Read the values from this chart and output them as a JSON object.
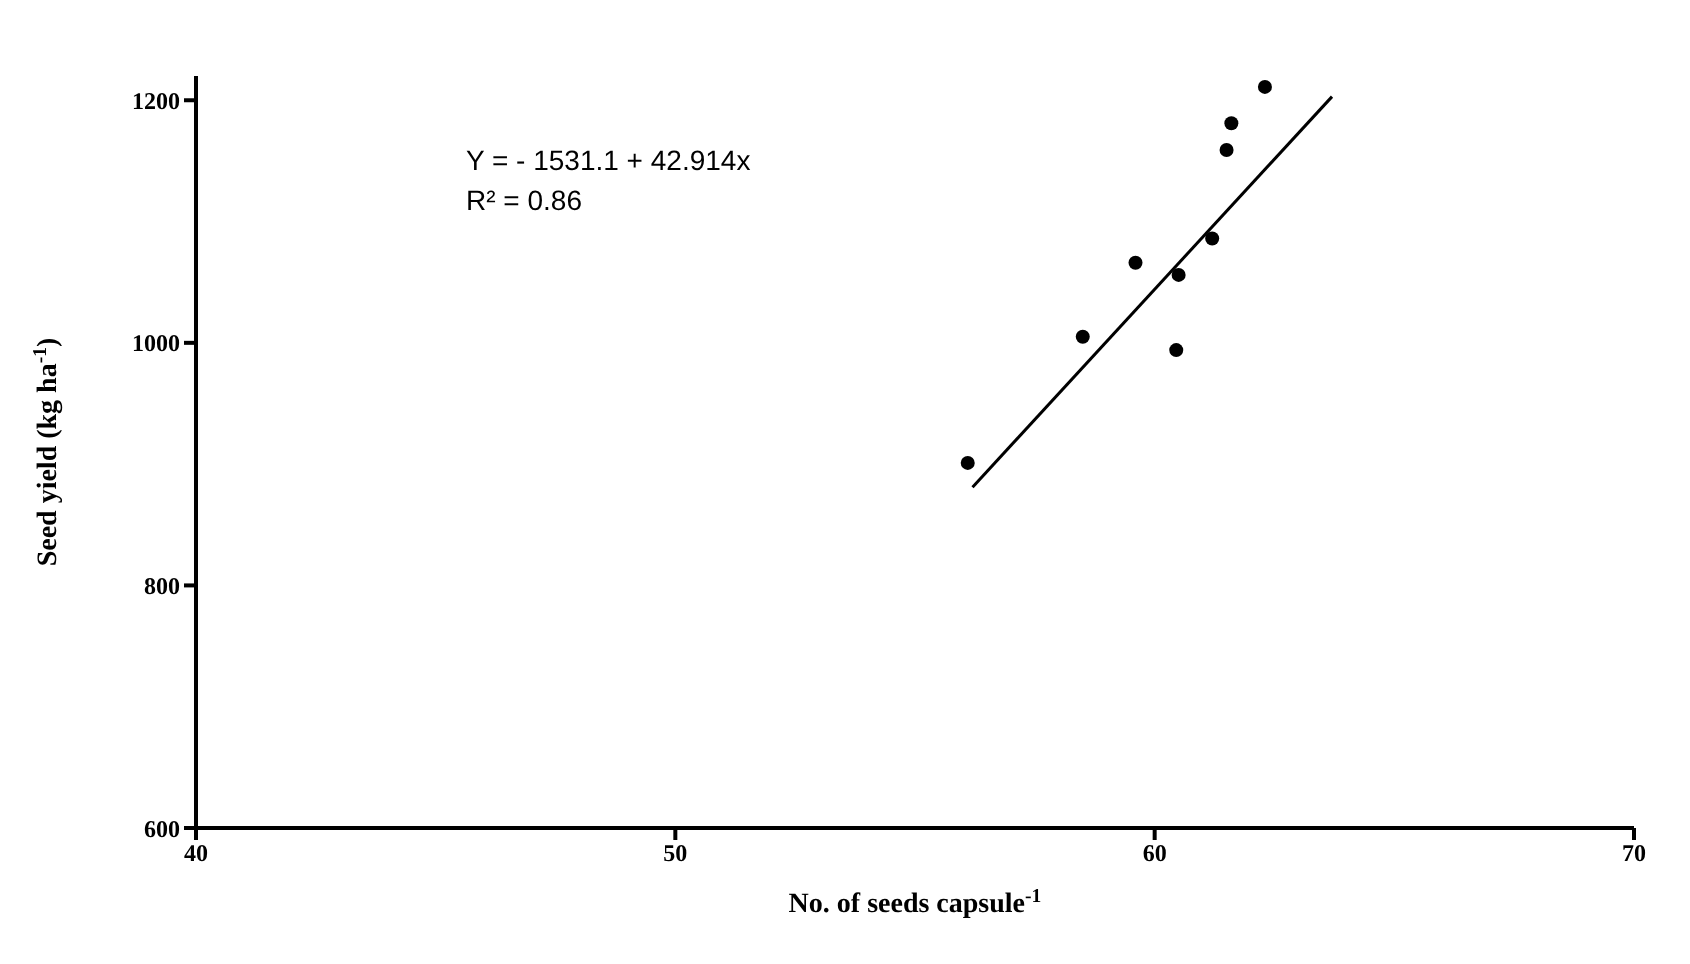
{
  "chart_data": {
    "type": "scatter",
    "xlabel": "No. of seeds capsule$^{-1}$",
    "ylabel": "Seed yield (kg ha$^{-1}$)",
    "annotations": [
      "Y = - 1531.1 + 42.914x",
      "R² = 0.86"
    ],
    "xlim": [
      40,
      70
    ],
    "xticks": [
      40,
      50,
      60,
      70
    ],
    "ylim": [
      600,
      1220
    ],
    "yticks": [
      600,
      800,
      1000,
      1200
    ],
    "grid": false,
    "series": [
      {
        "marker": "circle",
        "color": "#000000",
        "x": [
          56.1,
          58.5,
          59.6,
          60.5,
          60.45,
          61.2,
          61.5,
          61.6,
          62.3
        ],
        "values": [
          901,
          1005,
          1066,
          1056,
          994,
          1086,
          1159,
          1181,
          1211
        ]
      },
      {
        "type": "line",
        "marker": "none",
        "color": "#000000",
        "x": [
          56.2,
          63.7
        ],
        "values": [
          881,
          1203
        ]
      }
    ]
  }
}
